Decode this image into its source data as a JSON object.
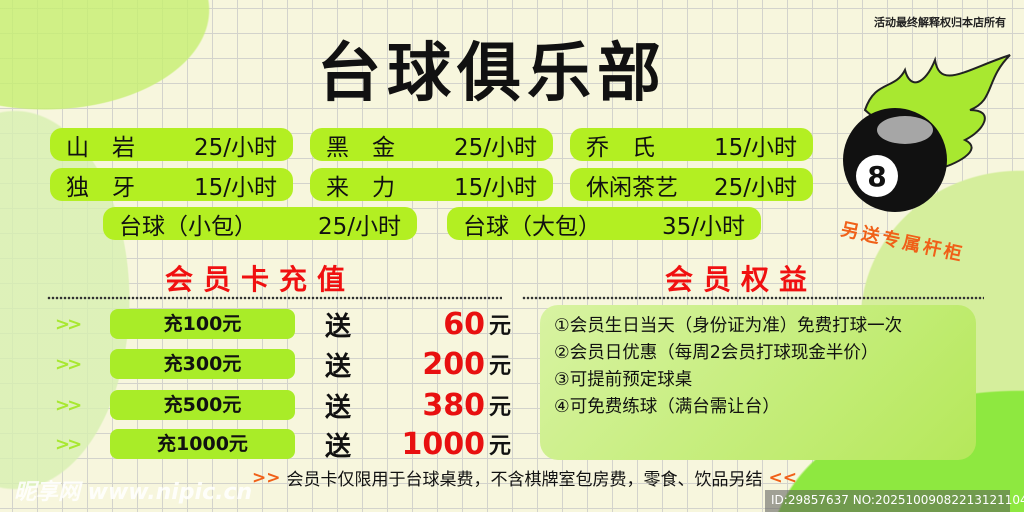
{
  "notice": "活动最终解释权归本店所有",
  "title": "台球俱乐部",
  "prices": [
    {
      "name": "山　岩",
      "price": "25/小时"
    },
    {
      "name": "黑　金",
      "price": "25/小时"
    },
    {
      "name": "乔　氏",
      "price": "15/小时"
    },
    {
      "name": "独　牙",
      "price": "15/小时"
    },
    {
      "name": "来　力",
      "price": "15/小时"
    },
    {
      "name": "休闲茶艺",
      "price": "25/小时"
    },
    {
      "name": "台球（小包）",
      "price": "25/小时"
    },
    {
      "name": "台球（大包）",
      "price": "35/小时"
    }
  ],
  "recharge": {
    "title": "会员卡充值",
    "arrows": ">>",
    "give_label": "送",
    "unit": "元",
    "rows": [
      {
        "charge": "充100元",
        "bonus": "60"
      },
      {
        "charge": "充300元",
        "bonus": "200"
      },
      {
        "charge": "充500元",
        "bonus": "380"
      },
      {
        "charge": "充1000元",
        "bonus": "1000"
      }
    ]
  },
  "benefits": {
    "title": "会员权益",
    "items": [
      "①会员生日当天（身份证为准）免费打球一次",
      "②会员日优惠（每周2会员打球现金半价）",
      "③可提前预定球桌",
      "④可免费练球（满台需让台）"
    ]
  },
  "gift": "另送专属杆柜",
  "ball_number": "8",
  "footer": {
    "left": ">>",
    "text": "会员卡仅限用于台球桌费，不含棋牌室包房费，零食、饮品另结",
    "right": "<<"
  },
  "watermark": {
    "site": "昵享网 www.nipic.cn",
    "id": "ID:29857637 NO:20251009082213121104"
  },
  "colors": {
    "pill": "#b3ef22",
    "section_title": "#f01010",
    "gift": "#f06018"
  }
}
